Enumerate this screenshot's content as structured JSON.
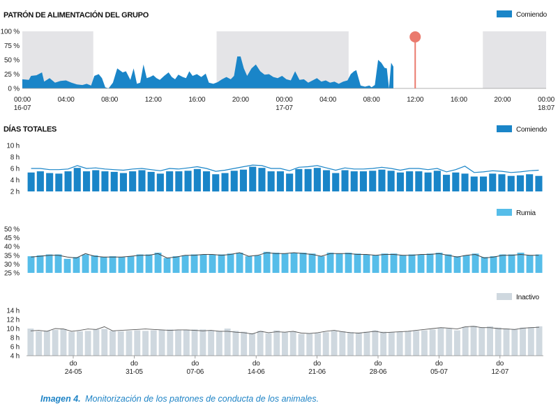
{
  "caption": {
    "label": "Imagen 4.",
    "text": "Monitorización de los patrones de conducta de los animales."
  },
  "colors": {
    "comiendo": "#1a85c8",
    "rumia": "#56bde9",
    "inactivo": "#cfd8df",
    "night_shade": "#e4e4e7",
    "marker": "#ea7a6d",
    "trend_line": "#444444"
  },
  "chart_data": [
    {
      "type": "area",
      "title": "PATRÓN DE ALIMENTACIÓN DEL GRUPO",
      "legend": [
        "Comiendo"
      ],
      "legend_position": "top-right",
      "ylim": [
        0,
        100
      ],
      "y_ticks": [
        "100 %",
        "75 %",
        "50 %",
        "25 %",
        "0 %"
      ],
      "x_hours_range": [
        0,
        48
      ],
      "x_ticks": [
        {
          "h": 0,
          "line1": "00:00",
          "line2": "16-07"
        },
        {
          "h": 4,
          "line1": "04:00",
          "line2": ""
        },
        {
          "h": 8,
          "line1": "08:00",
          "line2": ""
        },
        {
          "h": 12,
          "line1": "12:00",
          "line2": ""
        },
        {
          "h": 16,
          "line1": "16:00",
          "line2": ""
        },
        {
          "h": 20,
          "line1": "20:00",
          "line2": ""
        },
        {
          "h": 24,
          "line1": "00:00",
          "line2": "17-07"
        },
        {
          "h": 28,
          "line1": "04:00",
          "line2": ""
        },
        {
          "h": 32,
          "line1": "08:00",
          "line2": ""
        },
        {
          "h": 36,
          "line1": "12:00",
          "line2": ""
        },
        {
          "h": 40,
          "line1": "16:00",
          "line2": ""
        },
        {
          "h": 44,
          "line1": "20:00",
          "line2": ""
        },
        {
          "h": 48,
          "line1": "00:00",
          "line2": "18:07"
        }
      ],
      "night_bands_hours": [
        [
          0,
          6.5
        ],
        [
          17.8,
          29.9
        ],
        [
          42.2,
          48
        ]
      ],
      "current_time_marker_hour": 36,
      "series": [
        {
          "x_hours": [
            0,
            0.6,
            0.8,
            1.3,
            1.8,
            2.0,
            2.5,
            3.0,
            3.5,
            4.0,
            4.5,
            5.0,
            5.5,
            5.9,
            6.3,
            6.6,
            7.0,
            7.3,
            7.6,
            7.9,
            8.3,
            8.7,
            9.2,
            9.5,
            9.9,
            10.2,
            10.5,
            10.8,
            11.1,
            11.4,
            11.7,
            12.0,
            12.3,
            12.6,
            13.0,
            13.4,
            13.7,
            14.0,
            14.3,
            14.7,
            15.0,
            15.3,
            15.6,
            16.0,
            16.4,
            16.8,
            17.1,
            17.5,
            17.9,
            18.3,
            18.7,
            19.1,
            19.4,
            19.7,
            20.0,
            20.3,
            20.6,
            21.0,
            21.4,
            21.8,
            22.2,
            22.6,
            23.0,
            23.4,
            23.8,
            24.2,
            24.6,
            25.0,
            25.4,
            25.8,
            26.2,
            26.6,
            27.0,
            27.4,
            27.8,
            28.2,
            28.6,
            29.0,
            29.4,
            29.8,
            30.1,
            30.4,
            30.6,
            31.0,
            31.4,
            31.8,
            32.0,
            32.3,
            32.6,
            32.9,
            33.2,
            33.4,
            33.6,
            33.8,
            34.0
          ],
          "values": [
            16,
            15,
            22,
            23,
            28,
            12,
            18,
            10,
            13,
            14,
            10,
            7,
            6,
            8,
            5,
            22,
            25,
            18,
            2,
            0,
            10,
            35,
            28,
            30,
            15,
            35,
            8,
            10,
            42,
            18,
            20,
            23,
            18,
            15,
            22,
            28,
            20,
            16,
            24,
            20,
            18,
            30,
            22,
            25,
            20,
            26,
            10,
            8,
            11,
            16,
            20,
            16,
            22,
            56,
            56,
            35,
            22,
            35,
            42,
            30,
            24,
            25,
            20,
            18,
            22,
            16,
            14,
            30,
            15,
            16,
            10,
            14,
            18,
            12,
            14,
            10,
            12,
            8,
            12,
            14,
            25,
            30,
            32,
            5,
            3,
            5,
            2,
            6,
            50,
            45,
            36,
            35,
            0,
            45,
            38
          ]
        }
      ]
    },
    {
      "type": "bar",
      "title": "DÍAS TOTALES",
      "legend": [
        "Comiendo"
      ],
      "legend_position": "top-right",
      "ylim": [
        2,
        10
      ],
      "y_ticks": [
        "10 h",
        "8 h",
        "6 h",
        "4 h",
        "2 h"
      ],
      "values": [
        5.3,
        5.5,
        5.2,
        5.1,
        5.5,
        6.1,
        5.5,
        5.7,
        5.5,
        5.4,
        5.2,
        5.5,
        5.7,
        5.4,
        5.1,
        5.5,
        5.5,
        5.6,
        5.9,
        5.5,
        5.0,
        5.2,
        5.6,
        5.8,
        6.3,
        6.1,
        5.5,
        5.5,
        5.1,
        5.9,
        5.9,
        6.1,
        5.7,
        5.2,
        5.7,
        5.5,
        5.5,
        5.6,
        5.8,
        5.6,
        5.3,
        5.5,
        5.5,
        5.3,
        5.6,
        4.9,
        5.3,
        5.1,
        4.6,
        4.6,
        5.1,
        5.0,
        4.7,
        4.8,
        5.0,
        4.7
      ],
      "trend": [
        6.0,
        6.0,
        5.8,
        5.8,
        5.9,
        6.5,
        6.0,
        6.1,
        5.9,
        5.8,
        5.7,
        5.9,
        6.0,
        5.8,
        5.6,
        6.0,
        5.9,
        6.1,
        6.3,
        6.0,
        5.5,
        5.7,
        6.0,
        6.3,
        6.6,
        6.5,
        6.0,
        6.0,
        5.6,
        6.2,
        6.3,
        6.5,
        6.1,
        5.7,
        6.1,
        5.9,
        5.9,
        6.0,
        6.2,
        6.0,
        5.7,
        6.0,
        6.0,
        5.8,
        6.0,
        5.4,
        5.8,
        6.4,
        5.3,
        5.4,
        5.6,
        5.5,
        5.3,
        5.4,
        5.6,
        5.7
      ]
    },
    {
      "type": "bar",
      "title": "",
      "legend": [
        "Rumia"
      ],
      "legend_position": "top-right",
      "ylim": [
        25,
        50
      ],
      "y_ticks": [
        "50 %",
        "45 %",
        "40 %",
        "35 %",
        "30 %",
        "25 %"
      ],
      "values": [
        34.5,
        35.0,
        35.5,
        35.5,
        33.0,
        34.0,
        35.5,
        35.0,
        34.0,
        34.5,
        34.0,
        34.5,
        35.5,
        35.5,
        36.5,
        33.5,
        34.5,
        35.0,
        35.5,
        35.5,
        35.5,
        35.5,
        36.0,
        36.5,
        34.5,
        35.0,
        37.0,
        36.5,
        36.0,
        36.5,
        36.5,
        36.0,
        34.5,
        36.5,
        36.0,
        36.5,
        36.0,
        35.5,
        35.0,
        36.0,
        36.0,
        35.0,
        35.5,
        35.5,
        36.0,
        36.5,
        35.5,
        34.5,
        35.0,
        36.0,
        34.0,
        34.5,
        35.5,
        35.5,
        36.5,
        35.0,
        35.5
      ],
      "trend": [
        34.0,
        34.5,
        35.0,
        35.0,
        34.0,
        33.5,
        36.0,
        34.5,
        34.0,
        34.0,
        34.0,
        34.5,
        35.0,
        35.0,
        36.0,
        33.5,
        34.0,
        35.0,
        35.0,
        35.5,
        35.5,
        35.0,
        35.5,
        36.5,
        34.5,
        35.0,
        36.5,
        36.0,
        36.0,
        36.5,
        36.0,
        35.5,
        34.5,
        36.0,
        36.0,
        36.0,
        35.5,
        35.5,
        35.0,
        35.5,
        35.5,
        35.0,
        35.0,
        35.5,
        35.5,
        36.0,
        35.0,
        34.0,
        35.0,
        35.5,
        33.5,
        34.0,
        35.0,
        35.0,
        35.5,
        35.0,
        35.0
      ]
    },
    {
      "type": "bar",
      "title": "",
      "legend": [
        "Inactivo"
      ],
      "legend_position": "top-right",
      "ylim": [
        4,
        14
      ],
      "y_ticks": [
        "14 h",
        "12 h",
        "10 h",
        "8 h",
        "6 h",
        "4 h"
      ],
      "values": [
        10.0,
        9.4,
        9.5,
        9.7,
        9.9,
        9.3,
        9.4,
        9.5,
        9.8,
        9.9,
        9.5,
        9.4,
        9.5,
        9.6,
        9.5,
        9.6,
        9.7,
        9.8,
        9.6,
        9.7,
        9.8,
        9.8,
        9.6,
        9.5,
        10.0,
        9.5,
        9.3,
        9.0,
        9.5,
        9.0,
        9.6,
        9.2,
        9.4,
        8.8,
        8.9,
        9.0,
        9.2,
        9.5,
        9.4,
        9.2,
        9.0,
        9.3,
        9.6,
        9.3,
        9.2,
        9.3,
        9.4,
        9.5,
        9.6,
        9.8,
        10.2,
        10.0,
        9.6,
        10.4,
        10.6,
        10.3,
        10.5,
        10.2,
        10.0,
        9.9,
        10.2,
        10.3,
        10.5
      ],
      "trend": [
        9.5,
        9.6,
        9.4,
        10.0,
        9.9,
        9.4,
        9.6,
        9.9,
        9.8,
        10.4,
        9.5,
        9.6,
        9.7,
        9.8,
        9.9,
        9.8,
        9.7,
        9.6,
        9.7,
        9.7,
        9.6,
        9.5,
        9.6,
        9.4,
        9.4,
        9.2,
        9.1,
        8.8,
        9.4,
        9.1,
        9.3,
        9.2,
        9.4,
        9.0,
        8.9,
        9.1,
        9.4,
        9.6,
        9.3,
        9.1,
        9.0,
        9.2,
        9.4,
        9.1,
        9.2,
        9.3,
        9.4,
        9.6,
        9.8,
        10.0,
        10.2,
        10.1,
        9.9,
        10.4,
        10.5,
        10.2,
        10.2,
        10.0,
        9.9,
        9.8,
        10.1,
        10.2,
        10.3
      ]
    }
  ],
  "week_axis": {
    "ticks": [
      {
        "line1": "do",
        "line2": "24-05"
      },
      {
        "line1": "do",
        "line2": "31-05"
      },
      {
        "line1": "do",
        "line2": "07-06"
      },
      {
        "line1": "do",
        "line2": "14-06"
      },
      {
        "line1": "do",
        "line2": "21-06"
      },
      {
        "line1": "do",
        "line2": "28-06"
      },
      {
        "line1": "do",
        "line2": "05-07"
      },
      {
        "line1": "do",
        "line2": "12-07"
      }
    ]
  }
}
